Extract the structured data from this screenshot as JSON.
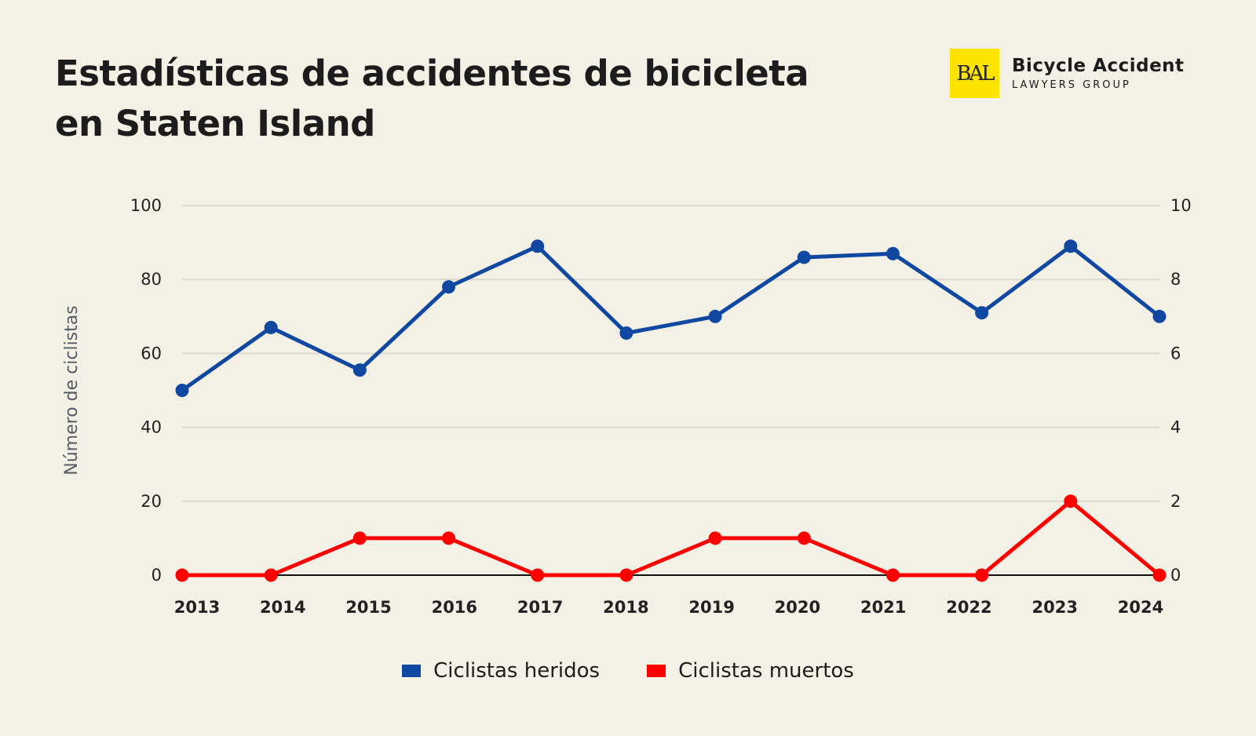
{
  "title": "Estadísticas de accidentes de bicicleta en Staten Island",
  "logo": {
    "mark": "BAL",
    "name": "Bicycle Accident",
    "subtitle": "LAWYERS GROUP",
    "color": "#fde300"
  },
  "chart_data": {
    "type": "line",
    "title": "Estadísticas de accidentes de bicicleta en Staten Island",
    "ylabel": "Número de ciclistas",
    "xlabel": "",
    "categories": [
      "2013",
      "2014",
      "2015",
      "2016",
      "2017",
      "2018",
      "2019",
      "2020",
      "2021",
      "2022",
      "2023",
      "2024"
    ],
    "ylim": [
      0,
      100
    ],
    "y2lim": [
      0,
      10
    ],
    "yticks": [
      "0",
      "20",
      "40",
      "60",
      "80",
      "100"
    ],
    "y2ticks": [
      "0",
      "2",
      "4",
      "6",
      "8",
      "10"
    ],
    "grid": true,
    "legend_position": "bottom",
    "series": [
      {
        "name": "Ciclistas heridos",
        "axis": "left",
        "color": "#0f47a1",
        "values": [
          50,
          67,
          55.5,
          78,
          89,
          65.5,
          70,
          86,
          87,
          71,
          89,
          70
        ]
      },
      {
        "name": "Ciclistas muertos",
        "axis": "right",
        "color": "#ff0000",
        "values": [
          0,
          0,
          1,
          1,
          0,
          0,
          1,
          1,
          0,
          0,
          2,
          0
        ]
      }
    ]
  }
}
